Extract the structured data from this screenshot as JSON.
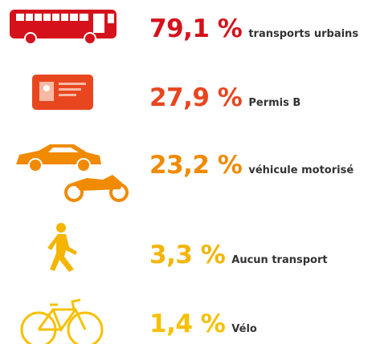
{
  "items": [
    {
      "percent": "79,1 %",
      "label": "transports urbains",
      "color": "#d5121c"
    },
    {
      "percent": "27,9 %",
      "label": "Permis B",
      "color": "#e8461f"
    },
    {
      "percent": "23,2 %",
      "label": "véhicule motorisé",
      "color": "#f08a00"
    },
    {
      "percent": "3,3 %",
      "label": "Aucun transport",
      "color": "#f4b400"
    },
    {
      "percent": "1,4 %",
      "label": "Vélo",
      "color": "#f7c000"
    }
  ]
}
